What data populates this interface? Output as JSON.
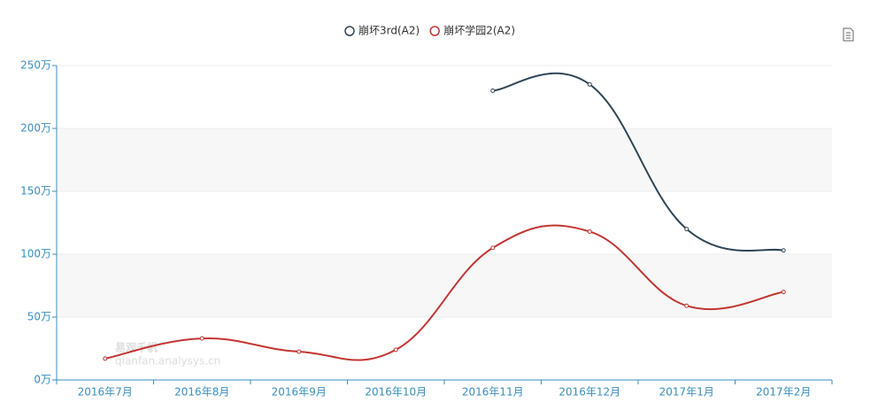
{
  "chart_data": {
    "type": "line",
    "categories": [
      "2016年7月",
      "2016年8月",
      "2016年9月",
      "2016年10月",
      "2016年11月",
      "2016年12月",
      "2017年1月",
      "2017年2月"
    ],
    "series": [
      {
        "name": "崩坏3rd(A2)",
        "color": "#2f4554",
        "values": [
          null,
          null,
          null,
          null,
          230,
          235,
          120,
          103
        ]
      },
      {
        "name": "崩坏学园2(A2)",
        "color": "#c23531",
        "values": [
          17,
          33,
          22.5,
          24,
          105,
          118,
          59,
          70
        ]
      }
    ],
    "ylim": [
      0,
      250
    ],
    "yticks": [
      {
        "value": 0,
        "label": "0万"
      },
      {
        "value": 50,
        "label": "50万"
      },
      {
        "value": 100,
        "label": "100万"
      },
      {
        "value": 150,
        "label": "150万"
      },
      {
        "value": 200,
        "label": "200万"
      },
      {
        "value": 250,
        "label": "250万"
      }
    ],
    "grid": true,
    "smooth": true,
    "legend": "top",
    "watermark": "易观千帆",
    "watermark_url": "qianfan.analysys.cn"
  }
}
